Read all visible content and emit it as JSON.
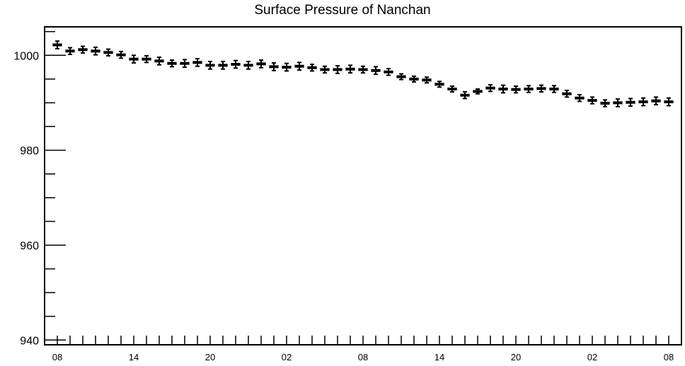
{
  "chart_data": {
    "type": "line",
    "title": "Surface Pressure of Nanchan",
    "xlabel": "",
    "ylabel": "",
    "ylim": [
      939,
      1006
    ],
    "y_ticks": [
      940,
      960,
      980,
      1000
    ],
    "y_tick_labels": [
      "940",
      "960",
      "980",
      "1000"
    ],
    "x_ticks": [
      0,
      6,
      12,
      18,
      24,
      30,
      36,
      42,
      48
    ],
    "x_tick_labels": [
      "08",
      "14",
      "20",
      "02",
      "08",
      "14",
      "20",
      "02",
      "08"
    ],
    "xlim": [
      -1,
      49
    ],
    "grid": false,
    "legend": "none",
    "series": [
      {
        "x": [
          0,
          1,
          2,
          3,
          4,
          5,
          6,
          7,
          8,
          9,
          10,
          11,
          12,
          13,
          14,
          15,
          16,
          17,
          18,
          19,
          20,
          21,
          22,
          23,
          24,
          25,
          26,
          27,
          28,
          29,
          30,
          31,
          32,
          33,
          34,
          35,
          36,
          37,
          38,
          39,
          40,
          41,
          42,
          43,
          44,
          45,
          46,
          47,
          48
        ],
        "values": [
          1002.2,
          1000.9,
          1001.2,
          1000.9,
          1000.6,
          1000.1,
          999.2,
          999.2,
          998.8,
          998.3,
          998.3,
          998.5,
          997.9,
          997.9,
          998.1,
          997.9,
          998.2,
          997.6,
          997.5,
          997.7,
          997.4,
          997.0,
          997.0,
          997.1,
          997.0,
          996.8,
          996.5,
          995.5,
          995.0,
          994.8,
          993.9,
          992.9,
          991.6,
          992.4,
          993.1,
          992.9,
          992.8,
          992.9,
          993.0,
          992.9,
          991.9,
          991.0,
          990.5,
          989.9,
          990.0,
          990.1,
          990.2,
          990.4,
          990.2
        ],
        "errors": [
          0.8,
          0.7,
          0.7,
          0.8,
          0.7,
          0.7,
          0.8,
          0.7,
          0.8,
          0.7,
          0.8,
          0.8,
          0.8,
          0.8,
          0.8,
          0.8,
          0.8,
          0.8,
          0.8,
          0.8,
          0.7,
          0.7,
          0.8,
          0.8,
          0.7,
          0.8,
          0.7,
          0.6,
          0.6,
          0.6,
          0.6,
          0.6,
          0.7,
          0.5,
          0.7,
          0.8,
          0.7,
          0.7,
          0.7,
          0.7,
          0.7,
          0.7,
          0.7,
          0.7,
          0.8,
          0.8,
          0.8,
          0.8,
          0.8
        ]
      }
    ]
  }
}
